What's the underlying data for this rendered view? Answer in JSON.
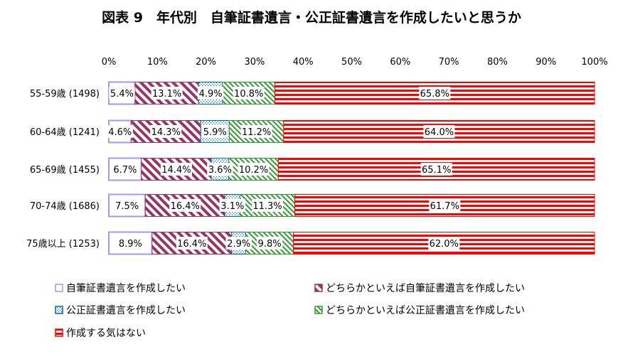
{
  "chart_data": {
    "type": "bar",
    "orientation": "horizontal",
    "stacked": true,
    "percent_stacked": true,
    "title": "図表 9　年代別　自筆証書遺言・公正証書遺言を作成したいと思うか",
    "xlim": [
      0,
      100
    ],
    "x_ticks": [
      "0%",
      "10%",
      "20%",
      "30%",
      "40%",
      "50%",
      "60%",
      "70%",
      "80%",
      "90%",
      "100%"
    ],
    "categories": [
      "55-59歳 (1498)",
      "60-64歳 (1241)",
      "65-69歳 (1455)",
      "70-74歳 (1686)",
      "75歳以上 (1253)"
    ],
    "series": [
      {
        "name": "自筆証書遺言を作成したい",
        "color": "#9999ff",
        "pattern": "light",
        "values": [
          5.4,
          4.6,
          6.7,
          7.5,
          8.9
        ]
      },
      {
        "name": "どちらかといえば自筆証書遺言を作成したい",
        "color": "#993366",
        "pattern": "diagonal",
        "values": [
          13.1,
          14.3,
          14.4,
          16.4,
          16.4
        ]
      },
      {
        "name": "公正証書遺言を作成したい",
        "color": "#0066cc",
        "pattern": "dots",
        "values": [
          4.9,
          5.9,
          3.6,
          3.1,
          2.9
        ]
      },
      {
        "name": "どちらかといえば公正証書遺言を作成したい",
        "color": "#339933",
        "pattern": "diagonal-green",
        "values": [
          10.8,
          11.2,
          10.2,
          11.3,
          9.8
        ]
      },
      {
        "name": "作成する気はない",
        "color": "#ff0000",
        "pattern": "horizontal-stripes",
        "values": [
          65.8,
          64.0,
          65.1,
          61.7,
          62.0
        ]
      }
    ],
    "legend_position": "bottom",
    "grid": false
  }
}
